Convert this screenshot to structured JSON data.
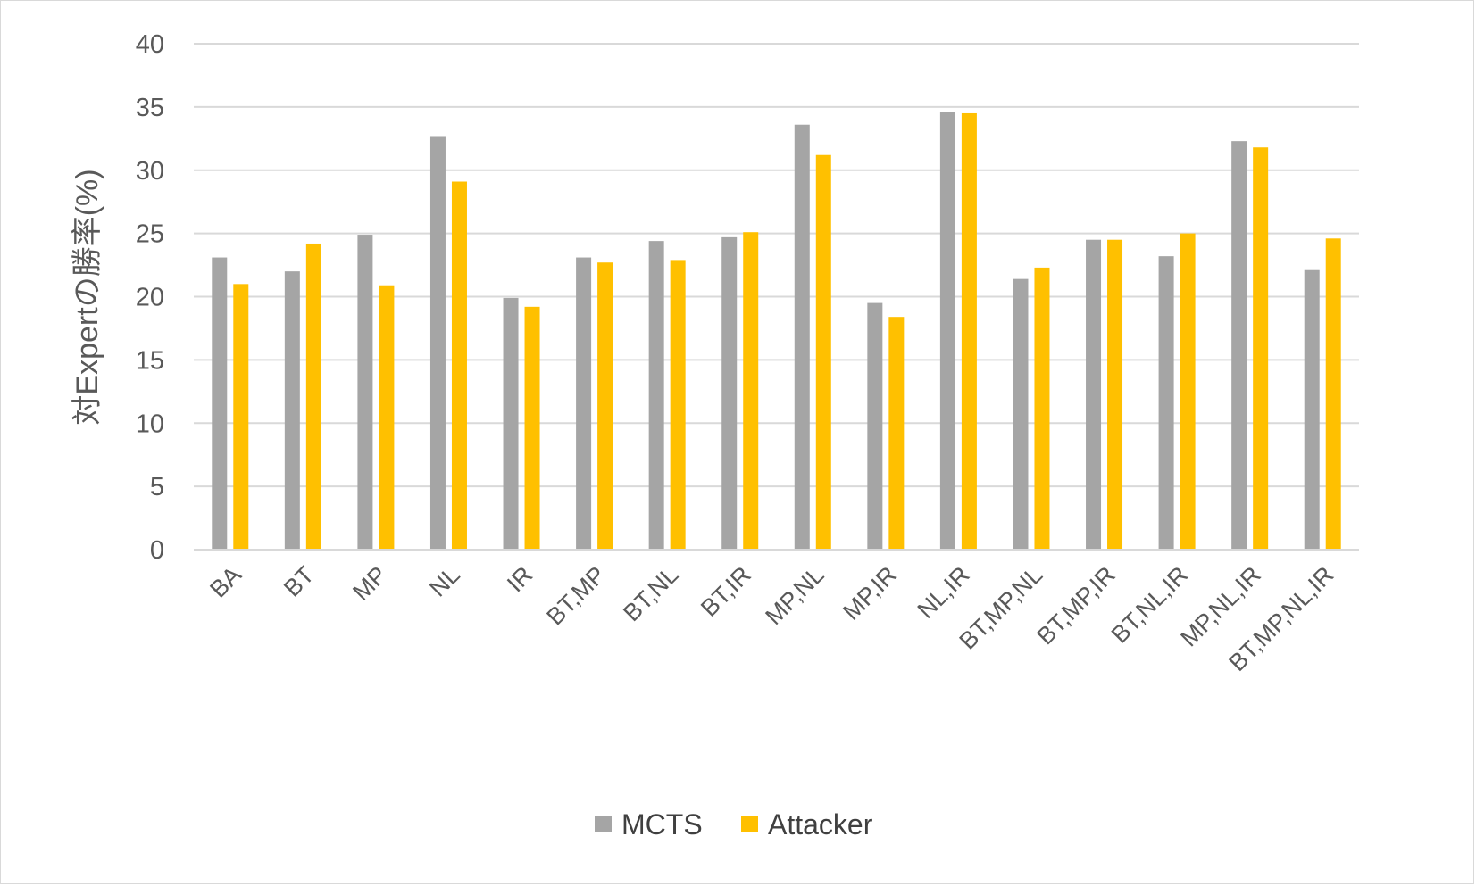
{
  "chart_data": {
    "type": "bar",
    "ylabel": "対Expertの勝率(%)",
    "ylim": [
      0,
      40
    ],
    "yticks": [
      0,
      5,
      10,
      15,
      20,
      25,
      30,
      35,
      40
    ],
    "grid": true,
    "legend_position": "bottom",
    "categories": [
      "BA",
      "BT",
      "MP",
      "NL",
      "IR",
      "BT,MP",
      "BT,NL",
      "BT,IR",
      "MP,NL",
      "MP,IR",
      "NL,IR",
      "BT,MP,NL",
      "BT,MP,IR",
      "BT,NL,IR",
      "MP,NL,IR",
      "BT,MP,NL,IR"
    ],
    "series": [
      {
        "name": "MCTS",
        "color": "#a5a5a5",
        "values": [
          23.1,
          22.0,
          24.9,
          32.7,
          19.9,
          23.1,
          24.4,
          24.7,
          33.6,
          19.5,
          34.6,
          21.4,
          24.5,
          23.2,
          32.3,
          22.1
        ]
      },
      {
        "name": "Attacker",
        "color": "#ffc000",
        "values": [
          21.0,
          24.2,
          20.9,
          29.1,
          19.2,
          22.7,
          22.9,
          25.1,
          31.2,
          18.4,
          34.5,
          22.3,
          24.5,
          25.0,
          31.8,
          24.6
        ]
      }
    ]
  }
}
